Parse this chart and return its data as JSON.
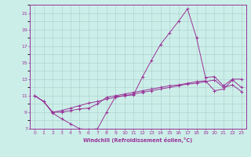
{
  "xlabel": "Windchill (Refroidissement éolien,°C)",
  "line_color": "#993399",
  "bg_color": "#cceee8",
  "grid_color": "#aacccc",
  "xlim": [
    -0.5,
    23.5
  ],
  "ylim": [
    7,
    22
  ],
  "xticks": [
    0,
    1,
    2,
    3,
    4,
    5,
    6,
    7,
    8,
    9,
    10,
    11,
    12,
    13,
    14,
    15,
    16,
    17,
    18,
    19,
    20,
    21,
    22,
    23
  ],
  "yticks": [
    7,
    9,
    11,
    13,
    15,
    17,
    19,
    21
  ],
  "line1_x": [
    0,
    1,
    2,
    3,
    4,
    5,
    6,
    7,
    8,
    9,
    10,
    11,
    12,
    13,
    14,
    15,
    16,
    17,
    18,
    19,
    20,
    21,
    22,
    23
  ],
  "line1_y": [
    11.0,
    10.3,
    8.9,
    8.2,
    7.6,
    7.0,
    6.9,
    7.0,
    9.0,
    10.9,
    11.0,
    11.1,
    13.3,
    15.3,
    17.2,
    18.6,
    20.0,
    21.5,
    18.0,
    13.2,
    13.3,
    12.2,
    13.0,
    13.0
  ],
  "line2_x": [
    0,
    1,
    2,
    3,
    4,
    5,
    6,
    7,
    8,
    9,
    10,
    11,
    12,
    13,
    14,
    15,
    16,
    17,
    18,
    19,
    20,
    21,
    22,
    23
  ],
  "line2_y": [
    11.0,
    10.3,
    9.0,
    9.0,
    9.2,
    9.4,
    9.5,
    10.0,
    10.8,
    11.0,
    11.2,
    11.4,
    11.6,
    11.8,
    12.0,
    12.2,
    12.3,
    12.5,
    12.7,
    12.8,
    11.6,
    11.8,
    12.9,
    12.0
  ],
  "line3_x": [
    0,
    1,
    2,
    3,
    4,
    5,
    6,
    7,
    8,
    9,
    10,
    11,
    12,
    13,
    14,
    15,
    16,
    17,
    18,
    19,
    20,
    21,
    22,
    23
  ],
  "line3_y": [
    11.0,
    10.3,
    9.0,
    9.2,
    9.5,
    9.8,
    10.1,
    10.3,
    10.6,
    10.8,
    11.0,
    11.2,
    11.4,
    11.6,
    11.8,
    12.0,
    12.2,
    12.4,
    12.5,
    12.7,
    12.9,
    12.0,
    12.3,
    11.5
  ]
}
